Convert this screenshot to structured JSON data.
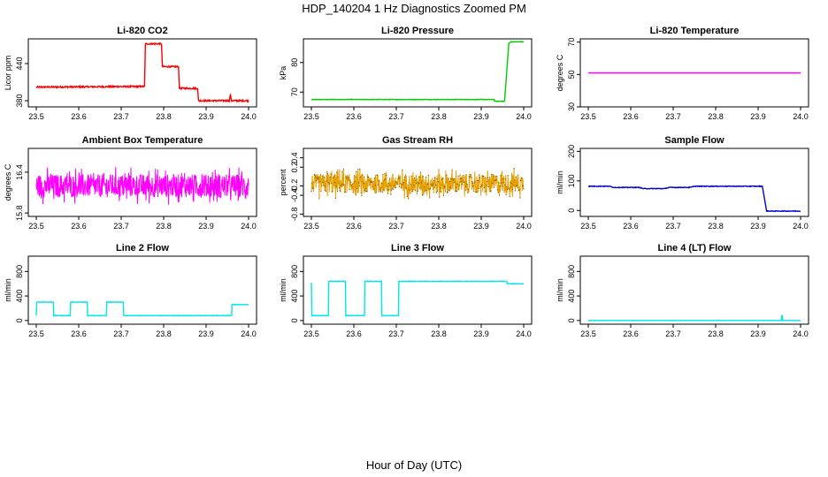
{
  "figure": {
    "title": "HDP_140204  1 Hz Diagnostics Zoomed PM",
    "xlabel": "Hour of Day (UTC)"
  },
  "chart_data": [
    {
      "type": "line",
      "title": "Li-820 CO2",
      "ylabel": "Licor ppm",
      "xlim": [
        23.5,
        24.0
      ],
      "ylim": [
        370,
        480
      ],
      "xticks": [
        "23.5",
        "23.6",
        "23.7",
        "23.8",
        "23.9",
        "24.0"
      ],
      "yticks": [
        380,
        440
      ],
      "color": "#ff0000",
      "noise": 1.2,
      "x": [
        23.5,
        23.755,
        23.757,
        23.795,
        23.797,
        23.835,
        23.837,
        23.88,
        23.882,
        23.955,
        23.957,
        23.96,
        23.962,
        24.0
      ],
      "y": [
        402,
        403,
        472,
        472,
        435,
        435,
        400,
        400,
        380,
        380,
        390,
        380,
        380,
        380
      ]
    },
    {
      "type": "line",
      "title": "Li-820 Pressure",
      "ylabel": "kPa",
      "xlim": [
        23.5,
        24.0
      ],
      "ylim": [
        65,
        88
      ],
      "xticks": [
        "23.5",
        "23.6",
        "23.7",
        "23.8",
        "23.9",
        "24.0"
      ],
      "yticks": [
        70,
        80
      ],
      "color": "#00cc00",
      "noise": 0.08,
      "x": [
        23.5,
        23.93,
        23.932,
        23.955,
        23.965,
        23.97,
        24.0
      ],
      "y": [
        67.5,
        67.5,
        66.9,
        66.9,
        86.5,
        87.0,
        87.0
      ]
    },
    {
      "type": "line",
      "title": "Li-820 Temperature",
      "ylabel": "degrees C",
      "xlim": [
        23.5,
        24.0
      ],
      "ylim": [
        30,
        72
      ],
      "xticks": [
        "23.5",
        "23.6",
        "23.7",
        "23.8",
        "23.9",
        "24.0"
      ],
      "yticks": [
        30,
        50,
        70
      ],
      "color": "#ff00ff",
      "noise": 0,
      "x": [
        23.5,
        24.0
      ],
      "y": [
        51,
        51
      ]
    },
    {
      "type": "line",
      "title": "Ambient Box Temperature",
      "ylabel": "degrees C",
      "xlim": [
        23.5,
        24.0
      ],
      "ylim": [
        15.75,
        16.75
      ],
      "xticks": [
        "23.5",
        "23.6",
        "23.7",
        "23.8",
        "23.9",
        "24.0"
      ],
      "yticks": [
        15.8,
        16.4
      ],
      "color": "#ff00ff",
      "noise": 0.17,
      "spiky": true,
      "x": [
        23.5,
        24.0
      ],
      "y": [
        16.2,
        16.2
      ]
    },
    {
      "type": "line",
      "title": "Gas Stream RH",
      "ylabel": "percent",
      "xlim": [
        23.5,
        24.0
      ],
      "ylim": [
        -0.85,
        0.6
      ],
      "xticks": [
        "23.5",
        "23.6",
        "23.7",
        "23.8",
        "23.9",
        "24.0"
      ],
      "yticks": [
        -0.8,
        -0.4,
        -0.2,
        0.2,
        0.4
      ],
      "color": "#e6a000",
      "noise": 0.2,
      "spiky": true,
      "dots": true,
      "x": [
        23.5,
        24.0
      ],
      "y": [
        -0.15,
        -0.15
      ]
    },
    {
      "type": "line",
      "title": "Sample Flow",
      "ylabel": "ml/min",
      "xlim": [
        23.5,
        24.0
      ],
      "ylim": [
        -20,
        210
      ],
      "xticks": [
        "23.5",
        "23.6",
        "23.7",
        "23.8",
        "23.9",
        "24.0"
      ],
      "yticks": [
        0,
        100,
        200
      ],
      "color": "#0000cc",
      "noise": 1.0,
      "x": [
        23.5,
        23.55,
        23.56,
        23.62,
        23.63,
        23.68,
        23.69,
        23.74,
        23.75,
        23.91,
        23.92,
        24.0
      ],
      "y": [
        82,
        82,
        78,
        78,
        74,
        74,
        78,
        78,
        82,
        82,
        -2,
        -2
      ]
    },
    {
      "type": "line",
      "title": "Line 2 Flow",
      "ylabel": "ml/min",
      "xlim": [
        23.5,
        24.0
      ],
      "ylim": [
        -60,
        1050
      ],
      "xticks": [
        "23.5",
        "23.6",
        "23.7",
        "23.8",
        "23.9",
        "24.0"
      ],
      "yticks": [
        0,
        400,
        800
      ],
      "color": "#00e5ee",
      "noise": 4,
      "x": [
        23.5,
        23.5,
        23.54,
        23.54,
        23.58,
        23.58,
        23.62,
        23.62,
        23.665,
        23.665,
        23.705,
        23.705,
        23.96,
        23.96,
        24.0
      ],
      "y": [
        80,
        300,
        300,
        80,
        80,
        300,
        300,
        80,
        80,
        300,
        300,
        80,
        80,
        260,
        260
      ]
    },
    {
      "type": "line",
      "title": "Line 3 Flow",
      "ylabel": "ml/min",
      "xlim": [
        23.5,
        24.0
      ],
      "ylim": [
        -60,
        1050
      ],
      "xticks": [
        "23.5",
        "23.6",
        "23.7",
        "23.8",
        "23.9",
        "24.0"
      ],
      "yticks": [
        0,
        400,
        800
      ],
      "color": "#00e5ee",
      "noise": 4,
      "x": [
        23.5,
        23.5,
        23.5,
        23.54,
        23.54,
        23.58,
        23.58,
        23.625,
        23.625,
        23.665,
        23.665,
        23.705,
        23.705,
        23.96,
        23.96,
        24.0
      ],
      "y": [
        620,
        620,
        80,
        80,
        640,
        640,
        80,
        80,
        640,
        640,
        80,
        80,
        640,
        640,
        600,
        600
      ]
    },
    {
      "type": "line",
      "title": "Line 4 (LT) Flow",
      "ylabel": "ml/min",
      "xlim": [
        23.5,
        24.0
      ],
      "ylim": [
        -60,
        1050
      ],
      "xticks": [
        "23.5",
        "23.6",
        "23.7",
        "23.8",
        "23.9",
        "24.0"
      ],
      "yticks": [
        0,
        400,
        800
      ],
      "color": "#00e5ee",
      "noise": 1,
      "x": [
        23.5,
        23.955,
        23.956,
        23.957,
        23.958,
        24.0
      ],
      "y": [
        0,
        0,
        80,
        80,
        0,
        0
      ]
    }
  ]
}
